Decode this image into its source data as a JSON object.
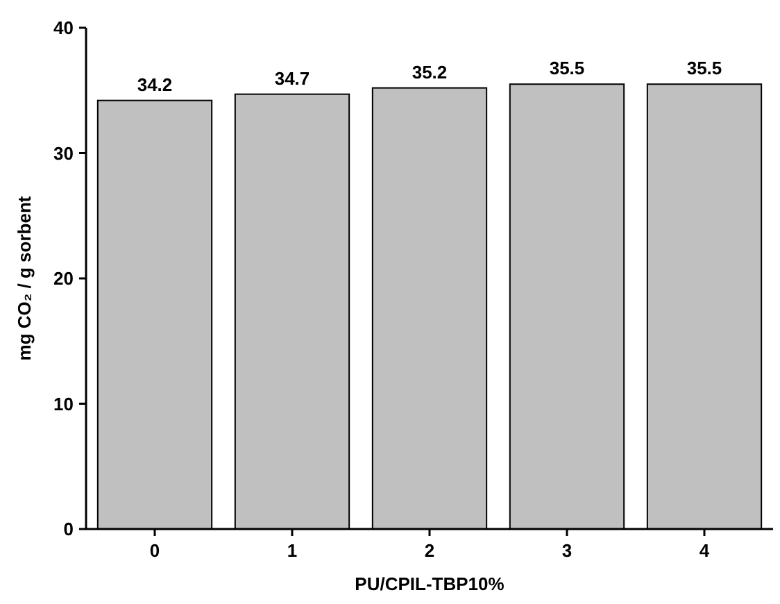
{
  "chart_data": {
    "type": "bar",
    "xlabel": "PU/CPIL-TBP10%",
    "ylabel": "mg CO₂ / g sorbent",
    "categories": [
      "0",
      "1",
      "2",
      "3",
      "4"
    ],
    "values": [
      34.2,
      34.7,
      35.2,
      35.5,
      35.5
    ],
    "color": "#c0c0c0",
    "ylim": [
      0,
      40
    ],
    "yticks": [
      0,
      10,
      20,
      30,
      40
    ],
    "data_labels": true,
    "grid": false
  }
}
